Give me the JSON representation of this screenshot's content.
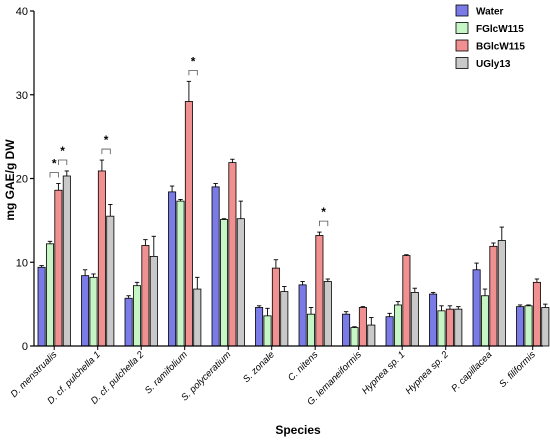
{
  "chart_data": {
    "type": "bar",
    "xlabel": "Species",
    "ylabel": "mg GAE/g DW",
    "ylim": [
      0,
      40
    ],
    "yticks": [
      "0",
      "10",
      "20",
      "30",
      "40"
    ],
    "grid": false,
    "legend_position": "top-right",
    "categories": [
      "D. menstrualis",
      "D. cf. pulchella 1",
      "D. cf. pulchella 2",
      "S. ramifolium",
      "S. polyceratium",
      "S. zonale",
      "C. nitens",
      "G. lemaneiformis",
      "Hypnea sp. 1",
      "Hypnea sp. 2",
      "P. capillacea",
      "S. filiformis"
    ],
    "series": [
      {
        "name": "Water",
        "color": "#7b7be8",
        "values": [
          9.4,
          8.4,
          5.7,
          18.4,
          19.0,
          4.6,
          7.3,
          3.8,
          3.5,
          6.2,
          9.1,
          4.7
        ],
        "errors": [
          0.2,
          0.7,
          0.3,
          0.7,
          0.4,
          0.2,
          0.4,
          0.3,
          0.4,
          0.2,
          0.8,
          0.2
        ]
      },
      {
        "name": "FGlcW115",
        "color": "#c6f5c6",
        "values": [
          12.2,
          8.2,
          7.2,
          17.3,
          15.1,
          3.6,
          3.8,
          2.2,
          4.9,
          4.2,
          6.0,
          4.8
        ],
        "errors": [
          0.3,
          0.4,
          0.4,
          0.2,
          0.1,
          0.9,
          0.8,
          0.1,
          0.4,
          0.6,
          0.8,
          0.1
        ]
      },
      {
        "name": "BGlcW115",
        "color": "#f09090",
        "values": [
          18.6,
          20.9,
          12.0,
          29.2,
          21.9,
          9.3,
          13.2,
          4.6,
          10.8,
          4.4,
          11.9,
          7.6
        ],
        "errors": [
          0.8,
          1.3,
          0.7,
          2.4,
          0.4,
          1.0,
          0.4,
          0.1,
          0.1,
          0.4,
          0.4,
          0.4
        ]
      },
      {
        "name": "UGly13",
        "color": "#c9c9c9",
        "values": [
          20.3,
          15.5,
          10.7,
          6.8,
          15.2,
          6.5,
          7.7,
          2.5,
          6.4,
          4.4,
          12.6,
          4.6
        ],
        "errors": [
          0.6,
          1.4,
          2.4,
          1.4,
          2.1,
          0.6,
          0.3,
          0.9,
          0.5,
          0.3,
          1.6,
          0.4
        ]
      }
    ],
    "significance": [
      {
        "label": "*",
        "category": "D. menstrualis",
        "from_series": 1,
        "to_series": 2
      },
      {
        "label": "*",
        "category": "D. menstrualis",
        "from_series": 2,
        "to_series": 3
      },
      {
        "label": "*",
        "category": "D. cf. pulchella 1",
        "from_series": 2,
        "to_series": 3
      },
      {
        "label": "*",
        "category": "S. ramifolium",
        "from_series": 2,
        "to_series": 3
      },
      {
        "label": "*",
        "category": "C. nitens",
        "from_series": 2,
        "to_series": 3
      }
    ]
  }
}
